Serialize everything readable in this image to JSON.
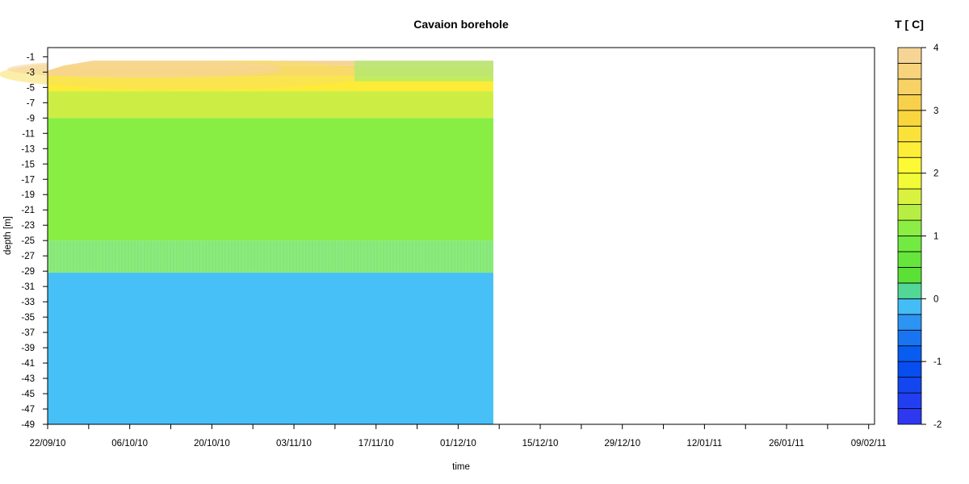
{
  "chart_data": {
    "type": "heatmap",
    "title": "Cavaion borehole",
    "xlabel": "time",
    "ylabel": "depth [m]",
    "colorbar_title": "T [ C]",
    "x_ticks": [
      "22/09/10",
      "06/10/10",
      "20/10/10",
      "03/11/10",
      "17/11/10",
      "01/12/10",
      "15/12/10",
      "29/12/10",
      "12/01/11",
      "26/01/11",
      "09/02/11"
    ],
    "x_range": [
      "22/09/10",
      "10/02/11"
    ],
    "data_time_range": [
      "22/09/10",
      "07/12/10"
    ],
    "y_ticks": [
      -1,
      -3,
      -5,
      -7,
      -9,
      -11,
      -13,
      -15,
      -17,
      -19,
      -21,
      -23,
      -25,
      -27,
      -29,
      -31,
      -33,
      -35,
      -37,
      -39,
      -41,
      -43,
      -45,
      -47,
      -49
    ],
    "y_range": [
      -49,
      0.2
    ],
    "colorbar_range": [
      -2,
      4
    ],
    "colorbar_ticks": [
      -2,
      -1,
      0,
      1,
      2,
      3,
      4
    ],
    "colorbar_steps": 24,
    "colorscale": [
      {
        "t": -2.0,
        "color": "#3535f0"
      },
      {
        "t": -1.0,
        "color": "#0050f0"
      },
      {
        "t": -0.5,
        "color": "#2080f0"
      },
      {
        "t": 0.0,
        "color": "#50d0f8"
      },
      {
        "t": 0.25,
        "color": "#55dd33"
      },
      {
        "t": 1.0,
        "color": "#77ee44"
      },
      {
        "t": 1.5,
        "color": "#ccee44"
      },
      {
        "t": 2.0,
        "color": "#ffff33"
      },
      {
        "t": 3.0,
        "color": "#f8d040"
      },
      {
        "t": 4.0,
        "color": "#f6d4a0"
      }
    ],
    "field": [
      {
        "depth_from": -1.5,
        "depth_to": -2.2,
        "T": 3.9
      },
      {
        "depth_from": -2.2,
        "depth_to": -3.5,
        "T": 3.5
      },
      {
        "depth_from": -3.5,
        "depth_to": -5.5,
        "T": 2.4
      },
      {
        "depth_from": -5.5,
        "depth_to": -9,
        "T": 1.5
      },
      {
        "depth_from": -9,
        "depth_to": -25,
        "T": 1.1
      },
      {
        "depth_from": -25,
        "depth_to": -29.2,
        "T": 0.9
      },
      {
        "depth_from": -29.2,
        "depth_to": -49,
        "T": -0.1
      }
    ],
    "grid": false
  }
}
